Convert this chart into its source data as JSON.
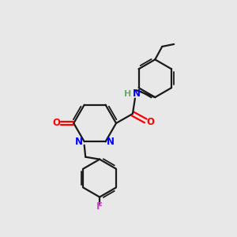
{
  "background_color": "#e8e8e8",
  "bond_color": "#1a1a1a",
  "nitrogen_color": "#0000ff",
  "oxygen_color": "#ff0000",
  "fluorine_color": "#cc44cc",
  "nh_h_color": "#6aaa6a",
  "nh_n_color": "#0000ff",
  "figsize": [
    3.0,
    3.0
  ],
  "dpi": 100,
  "xlim": [
    0,
    10
  ],
  "ylim": [
    0,
    10
  ],
  "lw": 1.6,
  "inner_lw": 1.3,
  "font_size": 8.5
}
